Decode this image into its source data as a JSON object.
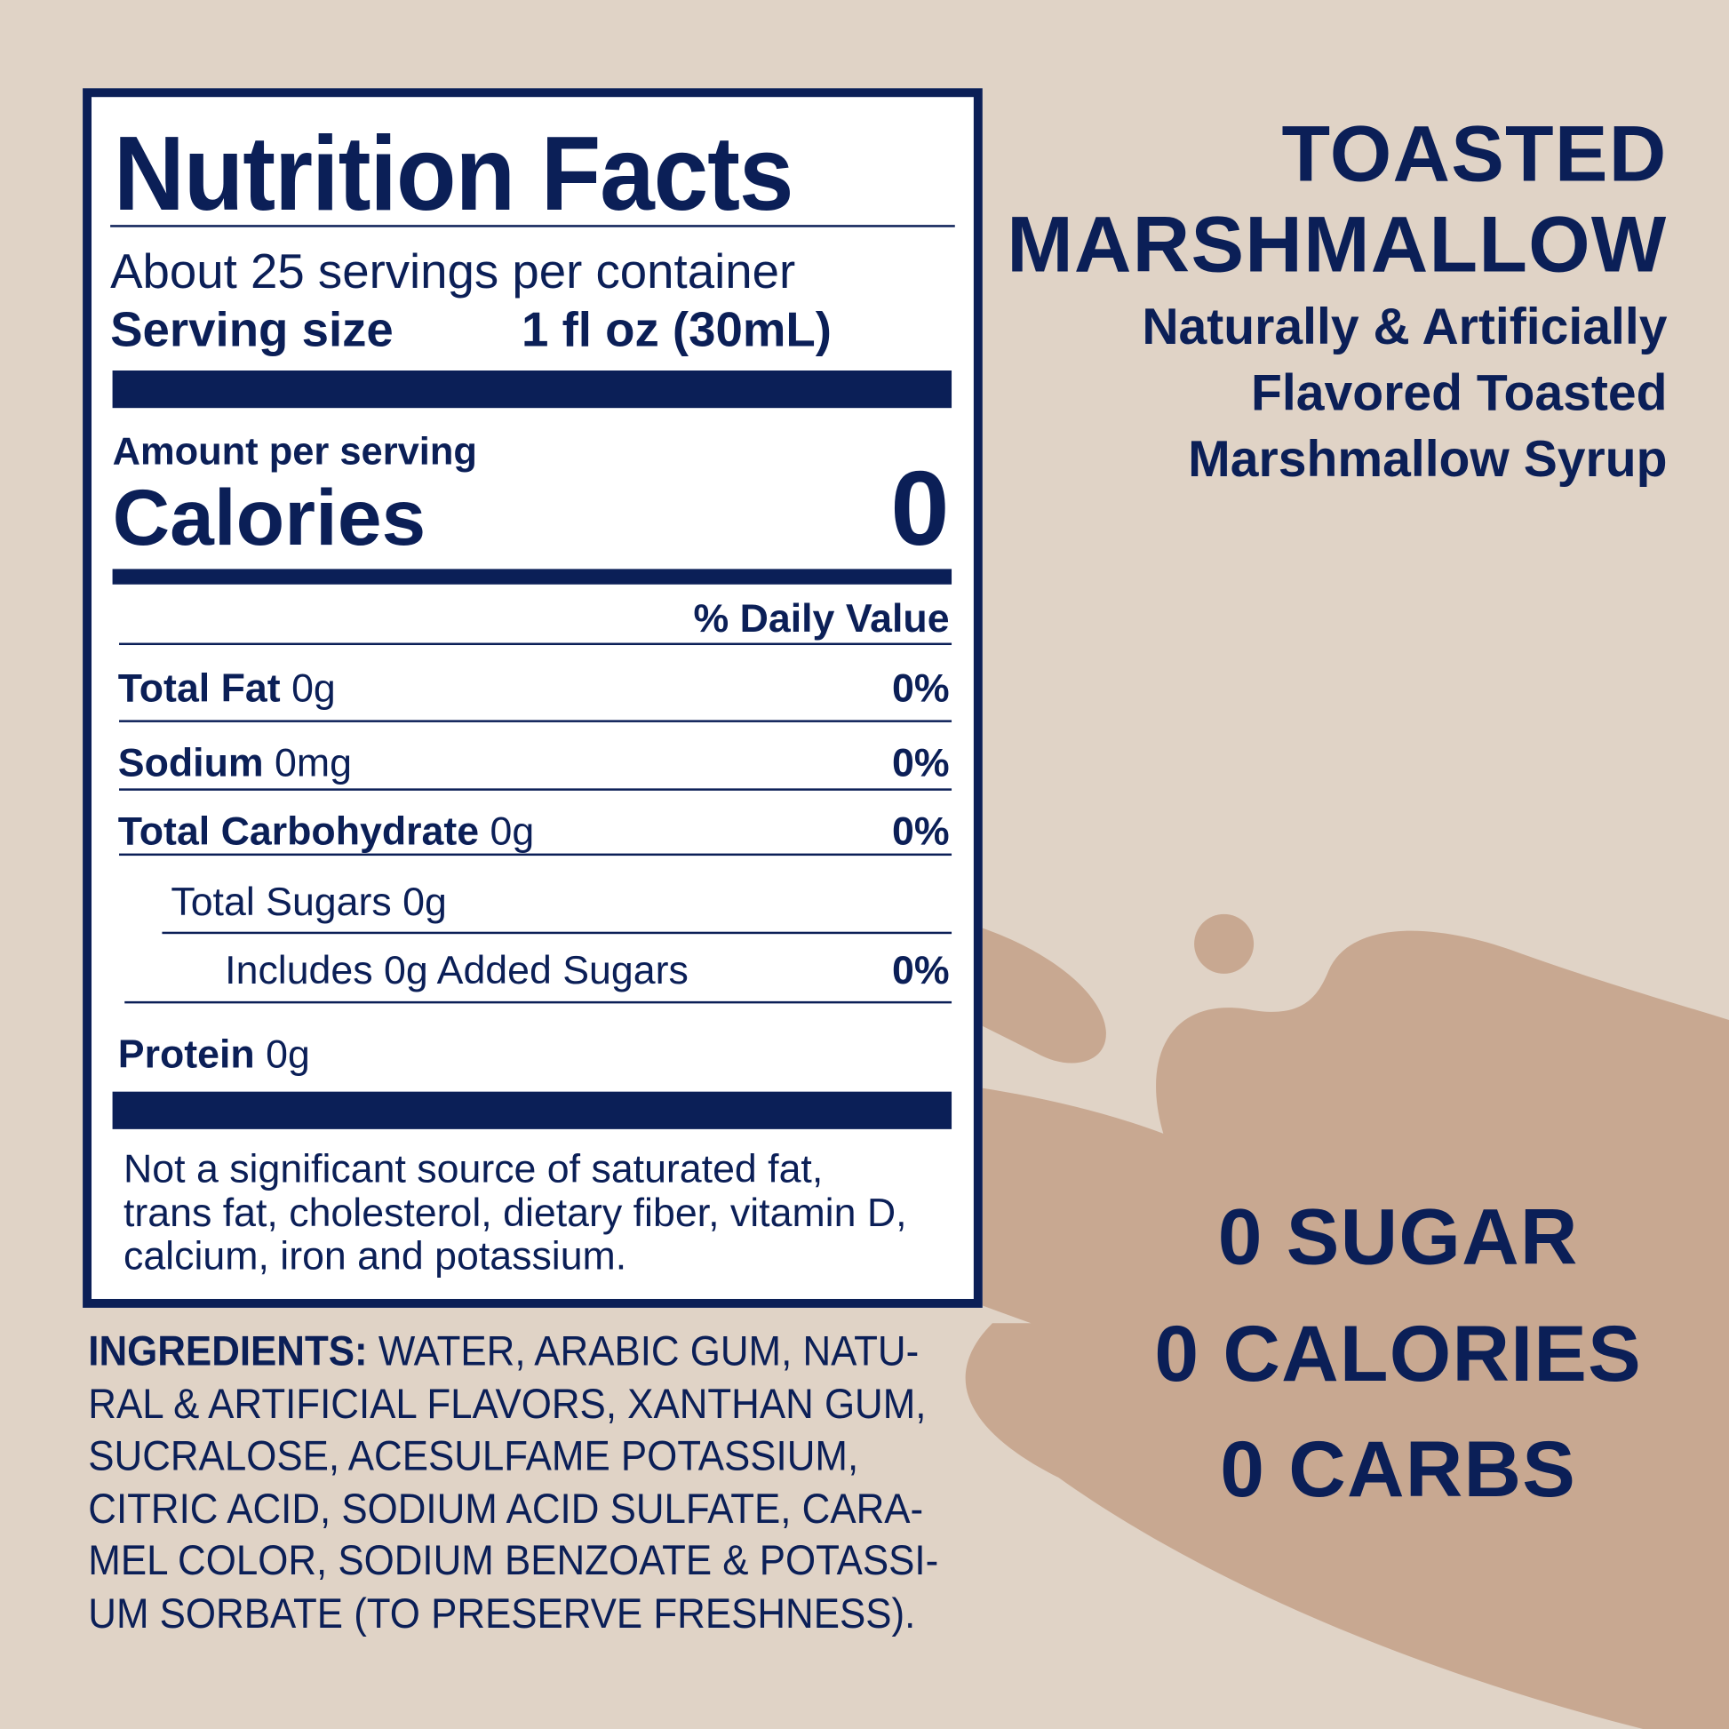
{
  "colors": {
    "background": "#e0d3c6",
    "splash": "#c8a891",
    "navy": "#0b1f57",
    "panel": "#ffffff"
  },
  "nutrition": {
    "title": "Nutrition Facts",
    "servings_per_container": "About 25 servings per container",
    "serving_size_label": "Serving size",
    "serving_size_value": "1 fl oz (30mL)",
    "amount_per_serving": "Amount per serving",
    "calories_label": "Calories",
    "calories_value": "0",
    "daily_value_header": "% Daily Value",
    "rows": [
      {
        "label": "Total Fat",
        "amount": "0g",
        "dv": "0%"
      },
      {
        "label": "Sodium",
        "amount": "0mg",
        "dv": "0%"
      },
      {
        "label": "Total Carbohydrate",
        "amount": "0g",
        "dv": "0%"
      },
      {
        "label": "",
        "amount": "Total Sugars 0g",
        "dv": ""
      },
      {
        "label": "",
        "amount": "Includes 0g Added Sugars",
        "dv": "0%"
      },
      {
        "label": "Protein",
        "amount": "0g",
        "dv": ""
      }
    ],
    "footnote": [
      "Not a significant source of saturated fat,",
      "trans fat, cholesterol, dietary fiber, vitamin D,",
      "calcium, iron and potassium."
    ]
  },
  "ingredients": {
    "label": "INGREDIENTS:",
    "lines": [
      " WATER, ARABIC GUM, NATU-",
      "RAL & ARTIFICIAL FLAVORS, XANTHAN GUM,",
      "SUCRALOSE, ACESULFAME POTASSIUM,",
      "CITRIC ACID, SODIUM ACID SULFATE, CARA-",
      "MEL COLOR, SODIUM BENZOATE & POTASSI-",
      "UM SORBATE (TO PRESERVE FRESHNESS)."
    ]
  },
  "product": {
    "name_line1": "TOASTED",
    "name_line2": "MARSHMALLOW",
    "description": [
      "Naturally & Artificially",
      "Flavored Toasted",
      "Marshmallow Syrup"
    ]
  },
  "claims": [
    "0 SUGAR",
    "0 CALORIES",
    "0 CARBS"
  ]
}
